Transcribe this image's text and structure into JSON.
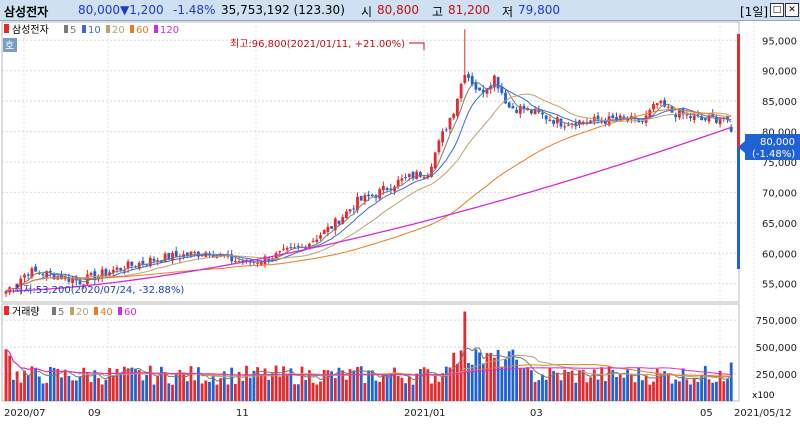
{
  "header": {
    "name": "삼성전자",
    "price": "80,000",
    "change": "▼1,200",
    "change_pct": "-1.48%",
    "volume": "35,753,192 (123.30)",
    "open_label": "시",
    "open": "80,800",
    "high_label": "고",
    "high": "81,200",
    "low_label": "저",
    "low": "79,800",
    "period": "[1일]"
  },
  "price_panel": {
    "legend": {
      "name": "삼성전자",
      "ma": [
        "5",
        "10",
        "20",
        "60",
        "120"
      ]
    },
    "side_tag": "호",
    "max_annotation": "최고:96,800(2021/01/11, +21.00%)",
    "min_annotation": "최저:53,200(2020/07/24, -32.88%)",
    "current_box": [
      "80,000",
      "(-1.48%)"
    ],
    "y_ticks": [
      "95,000",
      "90,000",
      "85,000",
      "80,000",
      "75,000",
      "70,000",
      "65,000",
      "60,000",
      "55,000"
    ]
  },
  "volume_panel": {
    "legend": {
      "name": "거래량",
      "ma": [
        "5",
        "20",
        "40",
        "60"
      ]
    },
    "y_ticks": [
      "750,000",
      "500,000",
      "250,000"
    ],
    "unit": "x100"
  },
  "x_axis": {
    "labels": [
      "2020/07",
      "09",
      "11",
      "2021/01",
      "03",
      "05",
      "2021/05/12"
    ]
  },
  "colors": {
    "up": "#e8282b",
    "down": "#1f62d6",
    "ma5": "#7a7a7a",
    "ma10": "#3b6cd6",
    "ma20": "#c0a070",
    "ma60": "#f07a20",
    "ma120": "#d92ad9"
  },
  "chart_data": {
    "type": "candlestick",
    "ylim": [
      52000,
      98000
    ],
    "volume_ylim": [
      0,
      900000
    ],
    "max": {
      "value": 96800,
      "date": "2021/01/11"
    },
    "min": {
      "value": 53200,
      "date": "2020/07/24"
    },
    "anchors_close": [
      [
        0,
        53800
      ],
      [
        6,
        57000
      ],
      [
        12,
        56600
      ],
      [
        20,
        55400
      ],
      [
        30,
        57400
      ],
      [
        40,
        59000
      ],
      [
        55,
        60300
      ],
      [
        60,
        59100
      ],
      [
        65,
        58400
      ],
      [
        72,
        59400
      ],
      [
        80,
        61000
      ],
      [
        88,
        64400
      ],
      [
        95,
        68500
      ],
      [
        100,
        69700
      ],
      [
        105,
        71500
      ],
      [
        110,
        72700
      ],
      [
        114,
        73500
      ],
      [
        118,
        79500
      ],
      [
        121,
        83600
      ],
      [
        124,
        90000
      ],
      [
        128,
        86300
      ],
      [
        132,
        89000
      ],
      [
        136,
        84000
      ],
      [
        140,
        83700
      ],
      [
        150,
        81500
      ],
      [
        160,
        81800
      ],
      [
        166,
        82000
      ],
      [
        172,
        81600
      ],
      [
        176,
        84600
      ],
      [
        180,
        83200
      ],
      [
        188,
        81900
      ],
      [
        194,
        82300
      ],
      [
        196,
        80000
      ]
    ],
    "volume_spikes": [
      [
        0,
        480000
      ],
      [
        1,
        420000
      ],
      [
        124,
        830000
      ],
      [
        127,
        480000
      ],
      [
        128,
        450000
      ],
      [
        193,
        280000
      ],
      [
        196,
        357532
      ]
    ]
  }
}
